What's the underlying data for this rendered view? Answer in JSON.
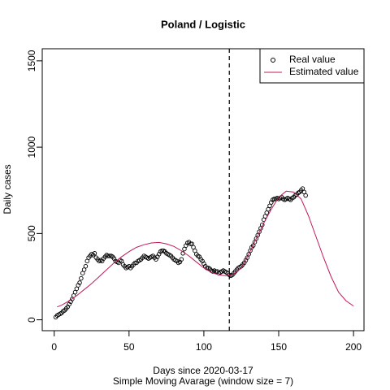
{
  "chart_data": {
    "type": "scatter",
    "title": "Poland / Logistic",
    "xlabel": "Days since 2020-03-17",
    "subtitle": "Simple Moving Avarage (window size = 7)",
    "ylabel": "Daily cases",
    "xlim": [
      -8,
      207
    ],
    "ylim": [
      -63,
      1570
    ],
    "xticks": [
      0,
      50,
      100,
      150,
      200
    ],
    "yticks": [
      0,
      500,
      1000,
      1500
    ],
    "vline": 117,
    "legend": "top-right",
    "series": [
      {
        "name": "Real value",
        "type": "scatter",
        "color": "#000000",
        "x": [
          1,
          2,
          3,
          4,
          5,
          6,
          7,
          8,
          9,
          10,
          11,
          12,
          13,
          14,
          15,
          16,
          17,
          18,
          19,
          20,
          21,
          22,
          23,
          24,
          25,
          26,
          27,
          28,
          29,
          30,
          31,
          32,
          33,
          34,
          35,
          36,
          37,
          38,
          39,
          40,
          41,
          42,
          43,
          44,
          45,
          46,
          47,
          48,
          49,
          50,
          51,
          52,
          53,
          54,
          55,
          56,
          57,
          58,
          59,
          60,
          61,
          62,
          63,
          64,
          65,
          66,
          67,
          68,
          69,
          70,
          71,
          72,
          73,
          74,
          75,
          76,
          77,
          78,
          79,
          80,
          81,
          82,
          83,
          84,
          85,
          86,
          87,
          88,
          89,
          90,
          91,
          92,
          93,
          94,
          95,
          96,
          97,
          98,
          99,
          100,
          101,
          102,
          103,
          104,
          105,
          106,
          107,
          108,
          109,
          110,
          111,
          112,
          113,
          114,
          115,
          116,
          117,
          118,
          119,
          120,
          121,
          122,
          123,
          124,
          125,
          126,
          127,
          128,
          129,
          130,
          131,
          132,
          133,
          134,
          135,
          136,
          137,
          138,
          139,
          140,
          141,
          142,
          143,
          144,
          145,
          146,
          147,
          148,
          149,
          150,
          151,
          152,
          153,
          154,
          155,
          156,
          157,
          158,
          159,
          160,
          161,
          162,
          163,
          164,
          165,
          166,
          167,
          168
        ],
        "values": [
          15,
          25,
          30,
          35,
          40,
          50,
          55,
          65,
          75,
          90,
          105,
          120,
          140,
          160,
          180,
          200,
          215,
          240,
          270,
          290,
          310,
          340,
          360,
          370,
          380,
          375,
          385,
          360,
          350,
          340,
          345,
          340,
          355,
          365,
          375,
          370,
          370,
          370,
          365,
          355,
          340,
          335,
          330,
          345,
          340,
          320,
          310,
          300,
          305,
          310,
          300,
          310,
          320,
          330,
          330,
          340,
          345,
          350,
          360,
          370,
          365,
          360,
          355,
          360,
          365,
          370,
          360,
          350,
          365,
          380,
          395,
          400,
          400,
          395,
          385,
          380,
          375,
          370,
          360,
          350,
          345,
          340,
          330,
          335,
          350,
          385,
          410,
          430,
          445,
          450,
          440,
          440,
          420,
          400,
          380,
          370,
          365,
          350,
          340,
          325,
          310,
          300,
          300,
          295,
          285,
          280,
          285,
          280,
          280,
          270,
          275,
          280,
          285,
          280,
          275,
          270,
          260,
          255,
          260,
          270,
          280,
          290,
          300,
          305,
          310,
          320,
          330,
          345,
          360,
          380,
          400,
          420,
          430,
          450,
          470,
          490,
          510,
          530,
          550,
          580,
          600,
          620,
          640,
          660,
          680,
          695,
          700,
          700,
          705,
          700,
          705,
          710,
          700,
          695,
          700,
          705,
          700,
          695,
          705,
          710,
          720,
          725,
          735,
          740,
          750,
          760,
          740,
          720
        ]
      },
      {
        "name": "Estimated value",
        "type": "line",
        "color": "#c2185b",
        "x": [
          2,
          5,
          10,
          15,
          20,
          25,
          30,
          35,
          40,
          45,
          50,
          55,
          60,
          65,
          70,
          75,
          80,
          85,
          90,
          95,
          100,
          105,
          110,
          115,
          120,
          125,
          130,
          135,
          140,
          145,
          150,
          155,
          160,
          165,
          170,
          175,
          180,
          185,
          190,
          195,
          200
        ],
        "values": [
          75,
          85,
          110,
          140,
          175,
          210,
          250,
          290,
          330,
          365,
          395,
          420,
          435,
          445,
          448,
          440,
          425,
          400,
          370,
          335,
          300,
          275,
          260,
          255,
          265,
          300,
          380,
          470,
          560,
          640,
          710,
          745,
          740,
          700,
          600,
          480,
          360,
          250,
          160,
          110,
          80
        ]
      }
    ]
  }
}
